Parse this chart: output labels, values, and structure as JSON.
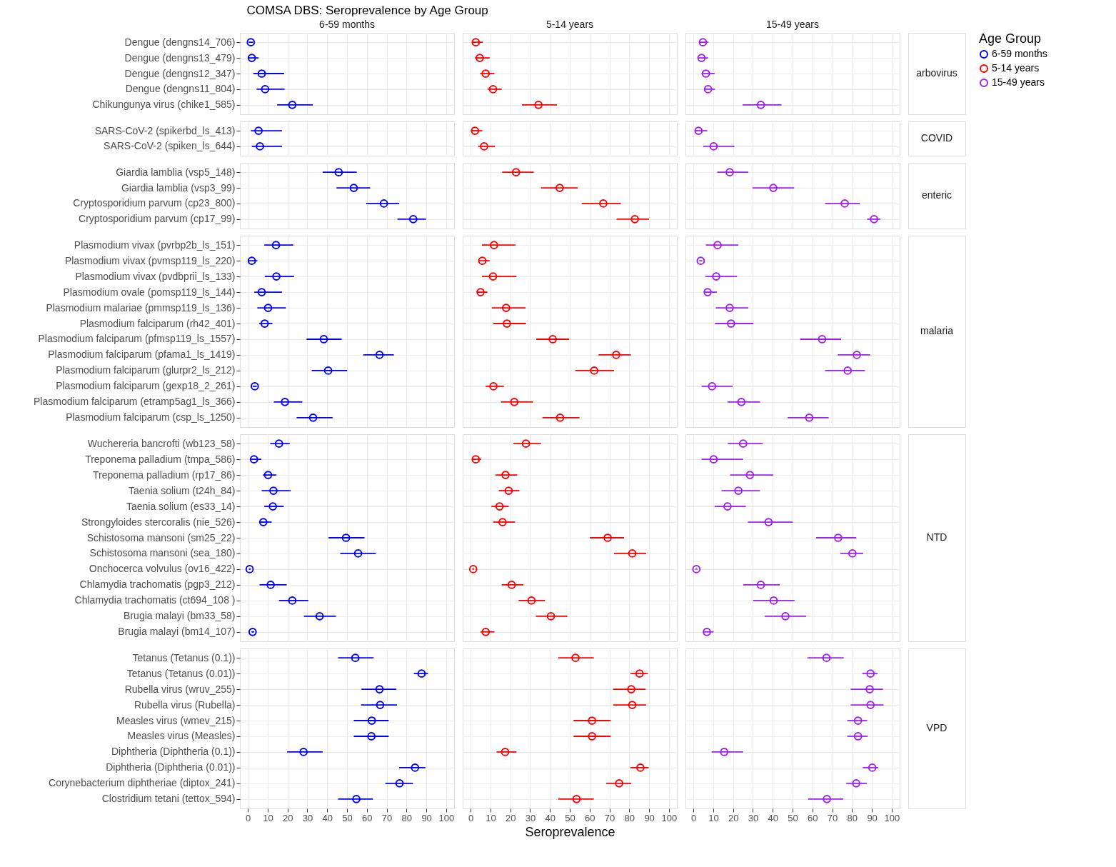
{
  "chart_data": [
    {
      "type": "other",
      "title": "COMSA DBS: Seroprevalence by Age Group"
    },
    {
      "type": "scatter",
      "orientation": "horizontal",
      "title": "6-59 months",
      "categories": [
        "Dengue (dengns14_706)",
        "Dengue (dengns13_479)",
        "Dengue (dengns12_347)",
        "Dengue (dengns11_804)",
        "Chikungunya virus (chike1_585)"
      ],
      "series": [
        {
          "name": "6-59 months",
          "color": "#0000ff",
          "values": [
            1.5,
            2,
            7,
            8.7,
            22.4
          ],
          "errors": [
            [
              0.5,
              2.5
            ],
            [
              0.2,
              5.4
            ],
            [
              2.8,
              18.3
            ],
            [
              4.4,
              18.5
            ],
            [
              14.8,
              32.7
            ]
          ]
        }
      ],
      "xlim": [
        -4,
        104
      ],
      "xticks": [
        0,
        10,
        20,
        30,
        40,
        50,
        60,
        70,
        80,
        90,
        100
      ],
      "grid": true,
      "tick_labels": "y",
      "marker": "circle",
      "legend": "right",
      "legend_title": "Age Group"
    },
    {
      "type": "scatter",
      "orientation": "horizontal",
      "title": "5-14 years",
      "categories": [
        null,
        null,
        null,
        null,
        null
      ],
      "series": [
        {
          "name": "5-14 years",
          "color": "#ff0000",
          "values": [
            2.6,
            4.6,
            7.6,
            11.3,
            34.2
          ],
          "errors": [
            [
              0.9,
              6.1
            ],
            [
              2.2,
              9.6
            ],
            [
              4.8,
              12
            ],
            [
              8.5,
              15.7
            ],
            [
              25.9,
              43.6
            ]
          ]
        }
      ],
      "xlim": [
        -4,
        104
      ],
      "xticks": [
        0,
        10,
        20,
        30,
        40,
        50,
        60,
        70,
        80,
        90,
        100
      ],
      "grid": true,
      "tick_labels": false,
      "marker": "circle"
    },
    {
      "type": "scatter",
      "orientation": "horizontal",
      "title": "15-49 years",
      "y2label": "arbovirus",
      "categories": [
        null,
        null,
        null,
        null,
        null
      ],
      "series": [
        {
          "name": "15-49 years",
          "color": "#a020f0",
          "values": [
            4.8,
            4.1,
            6.3,
            7.4,
            34
          ],
          "errors": [
            [
              3.1,
              7.6
            ],
            [
              2.6,
              7.4
            ],
            [
              4.1,
              10.7
            ],
            [
              5.4,
              10.9
            ],
            [
              24.8,
              44.4
            ]
          ]
        }
      ],
      "xlim": [
        -4,
        104
      ],
      "xticks": [
        0,
        10,
        20,
        30,
        40,
        50,
        60,
        70,
        80,
        90,
        100
      ],
      "grid": true,
      "tick_labels": false,
      "marker": "circle"
    },
    {
      "type": "scatter",
      "orientation": "horizontal",
      "categories": [
        "SARS-CoV-2 (spikerbd_ls_413)",
        "SARS-CoV-2 (spiken_ls_644)"
      ],
      "series": [
        {
          "color": "#0000ff",
          "values": [
            5.4,
            6.1
          ],
          "errors": [
            [
              1.5,
              17.2
            ],
            [
              2,
              17.2
            ]
          ]
        }
      ],
      "xlim": [
        -4,
        104
      ],
      "xticks": [
        0,
        10,
        20,
        30,
        40,
        50,
        60,
        70,
        80,
        90,
        100
      ],
      "grid": true,
      "tick_labels": "y",
      "marker": "circle"
    },
    {
      "type": "scatter",
      "orientation": "horizontal",
      "categories": [
        null,
        null
      ],
      "series": [
        {
          "color": "#ff0000",
          "values": [
            2.2,
            6.8
          ],
          "errors": [
            [
              0.2,
              5.9
            ],
            [
              3.9,
              12.2
            ]
          ]
        }
      ],
      "xlim": [
        -4,
        104
      ],
      "xticks": [
        0,
        10,
        20,
        30,
        40,
        50,
        60,
        70,
        80,
        90,
        100
      ],
      "grid": true,
      "tick_labels": false,
      "marker": "circle"
    },
    {
      "type": "scatter",
      "orientation": "horizontal",
      "y2label": "COVID",
      "categories": [
        null,
        null
      ],
      "series": [
        {
          "color": "#a020f0",
          "values": [
            2.6,
            10.2
          ],
          "errors": [
            [
              0.9,
              7
            ],
            [
              5,
              20.7
            ]
          ]
        }
      ],
      "xlim": [
        -4,
        104
      ],
      "xticks": [
        0,
        10,
        20,
        30,
        40,
        50,
        60,
        70,
        80,
        90,
        100
      ],
      "grid": true,
      "tick_labels": false,
      "marker": "circle"
    },
    {
      "type": "scatter",
      "orientation": "horizontal",
      "categories": [
        "Giardia lamblia (vsp5_148)",
        "Giardia lamblia (vsp3_99)",
        "Cryptosporidium parvum (cp23_800)",
        "Cryptosporidium parvum (cp17_99)"
      ],
      "series": [
        {
          "color": "#0000ff",
          "values": [
            45.8,
            53.4,
            68.6,
            83.4
          ],
          "errors": [
            [
              37.7,
              54.9
            ],
            [
              44.7,
              61.7
            ],
            [
              59.7,
              76.3
            ],
            [
              75.4,
              89.8
            ]
          ]
        }
      ],
      "xlim": [
        -4,
        104
      ],
      "xticks": [
        0,
        10,
        20,
        30,
        40,
        50,
        60,
        70,
        80,
        90,
        100
      ],
      "grid": true,
      "tick_labels": "y",
      "marker": "circle"
    },
    {
      "type": "scatter",
      "orientation": "horizontal",
      "categories": [
        null,
        null,
        null,
        null
      ],
      "series": [
        {
          "color": "#ff0000",
          "values": [
            22.9,
            44.9,
            66.9,
            82.8
          ],
          "errors": [
            [
              15.9,
              31.8
            ],
            [
              35.5,
              54
            ],
            [
              56,
              75.8
            ],
            [
              73.6,
              90
            ]
          ]
        }
      ],
      "xlim": [
        -4,
        104
      ],
      "xticks": [
        0,
        10,
        20,
        30,
        40,
        50,
        60,
        70,
        80,
        90,
        100
      ],
      "grid": true,
      "tick_labels": false,
      "marker": "circle"
    },
    {
      "type": "scatter",
      "orientation": "horizontal",
      "y2label": "enteric",
      "categories": [
        null,
        null,
        null,
        null
      ],
      "series": [
        {
          "color": "#a020f0",
          "values": [
            18.3,
            40.3,
            76.3,
            91.1
          ],
          "errors": [
            [
              12,
              27.7
            ],
            [
              29.8,
              50.8
            ],
            [
              66.4,
              83.9
            ],
            [
              87.6,
              94.3
            ]
          ]
        }
      ],
      "xlim": [
        -4,
        104
      ],
      "xticks": [
        0,
        10,
        20,
        30,
        40,
        50,
        60,
        70,
        80,
        90,
        100
      ],
      "grid": true,
      "tick_labels": false,
      "marker": "circle"
    },
    {
      "type": "scatter",
      "orientation": "horizontal",
      "categories": [
        "Plasmodium vivax (pvrbp2b_ls_151)",
        "Plasmodium vivax (pvmsp119_ls_220)",
        "Plasmodium vivax (pvdbprii_ls_133)",
        "Plasmodium ovale (pomsp119_ls_144)",
        "Plasmodium malariae (pmmsp119_ls_136)",
        "Plasmodium falciparum (rh42_401)",
        "Plasmodium falciparum (pfmsp119_ls_1557)",
        "Plasmodium falciparum (pfama1_ls_1419)",
        "Plasmodium falciparum (glurpr2_ls_212)",
        "Plasmodium falciparum (gexp18_2_261)",
        "Plasmodium falciparum (etramp5ag1_ls_366)",
        "Plasmodium falciparum (csp_ls_1250)"
      ],
      "series": [
        {
          "color": "#0000ff",
          "values": [
            14.2,
            2,
            14.4,
            7,
            10.2,
            8.5,
            38.3,
            66.4,
            40.5,
            3.5,
            18.7,
            32.9
          ],
          "errors": [
            [
              8.3,
              22.9
            ],
            [
              0,
              4.8
            ],
            [
              8.5,
              23.3
            ],
            [
              3.3,
              17.2
            ],
            [
              4.8,
              19.2
            ],
            [
              5.7,
              12.4
            ],
            [
              29.6,
              47.3
            ],
            [
              58.2,
              73.6
            ],
            [
              32.2,
              50.1
            ],
            [
              2.5,
              4.5
            ],
            [
              13.1,
              27.5
            ],
            [
              24.6,
              42.7
            ]
          ]
        }
      ],
      "xlim": [
        -4,
        104
      ],
      "xticks": [
        0,
        10,
        20,
        30,
        40,
        50,
        60,
        70,
        80,
        90,
        100
      ],
      "grid": true,
      "tick_labels": "y",
      "marker": "circle"
    },
    {
      "type": "scatter",
      "orientation": "horizontal",
      "categories": [
        null,
        null,
        null,
        null,
        null,
        null,
        null,
        null,
        null,
        null,
        null,
        null
      ],
      "series": [
        {
          "color": "#ff0000",
          "values": [
            11.8,
            5.9,
            11.3,
            5,
            17.9,
            18.3,
            41.4,
            73.4,
            62.3,
            11.5,
            22,
            45.1
          ],
          "errors": [
            [
              5.7,
              22.6
            ],
            [
              4.1,
              9.6
            ],
            [
              5.7,
              23.1
            ],
            [
              3.3,
              8.5
            ],
            [
              10.7,
              27.7
            ],
            [
              11.5,
              27.9
            ],
            [
              33.1,
              49.7
            ],
            [
              64.5,
              80.8
            ],
            [
              52.9,
              72.3
            ],
            [
              7.6,
              16.8
            ],
            [
              15.3,
              31.4
            ],
            [
              36.2,
              54.9
            ]
          ]
        }
      ],
      "xlim": [
        -4,
        104
      ],
      "xticks": [
        0,
        10,
        20,
        30,
        40,
        50,
        60,
        70,
        80,
        90,
        100
      ],
      "grid": true,
      "tick_labels": false,
      "marker": "circle"
    },
    {
      "type": "scatter",
      "orientation": "horizontal",
      "y2label": "malaria",
      "categories": [
        null,
        null,
        null,
        null,
        null,
        null,
        null,
        null,
        null,
        null,
        null,
        null
      ],
      "series": [
        {
          "color": "#a020f0",
          "values": [
            12.2,
            3.7,
            11.5,
            7.2,
            18.3,
            19,
            64.9,
            82.4,
            77.8,
            9.4,
            24.2,
            58.4
          ],
          "errors": [
            [
              6.3,
              22.7
            ],
            [
              3,
              4.5
            ],
            [
              6.1,
              22
            ],
            [
              5.4,
              11.8
            ],
            [
              11.3,
              27.7
            ],
            [
              10.9,
              30.3
            ],
            [
              53.8,
              74.5
            ],
            [
              72.8,
              89.1
            ],
            [
              66.4,
              86.5
            ],
            [
              4.1,
              19.8
            ],
            [
              17.2,
              33.6
            ],
            [
              47.5,
              68.2
            ]
          ]
        }
      ],
      "xlim": [
        -4,
        104
      ],
      "xticks": [
        0,
        10,
        20,
        30,
        40,
        50,
        60,
        70,
        80,
        90,
        100
      ],
      "grid": true,
      "tick_labels": false,
      "marker": "circle"
    },
    {
      "type": "scatter",
      "orientation": "horizontal",
      "categories": [
        "Wuchereria bancrofti (wb123_58)",
        "Treponema palladium (tmpa_586)",
        "Treponema palladium (rp17_86)",
        "Taenia solium (t24h_84)",
        "Taenia solium (es33_14)",
        "Strongyloides stercoralis (nie_526)",
        "Schistosoma mansoni (sm25_22)",
        "Schistosoma mansoni (sea_180)",
        "Onchocerca volvulus (ov16_422)",
        "Chlamydia trachomatis (pgp3_212)",
        "Chlamydia trachomatis (ct694_108  )",
        "Brugia malayi (bm33_58)",
        "Brugia malayi (bm14_107)"
      ],
      "series": [
        {
          "color": "#0000ff",
          "values": [
            15.7,
            3.1,
            10.2,
            12.9,
            12.6,
            7.8,
            49.5,
            55.6,
            0.9,
            11.5,
            22.4,
            36.2,
            2.4
          ],
          "errors": [
            [
              11.3,
              21.1
            ],
            [
              1.3,
              6.8
            ],
            [
              7.6,
              14.4
            ],
            [
              7,
              21.6
            ],
            [
              8.3,
              18.1
            ],
            [
              5.9,
              12
            ],
            [
              40.7,
              58.8
            ],
            [
              46.6,
              64.5
            ],
            [
              0.5,
              1.5
            ],
            [
              5.9,
              19.6
            ],
            [
              15.7,
              30.5
            ],
            [
              28.3,
              44.4
            ],
            [
              1.8,
              3.2
            ]
          ]
        }
      ],
      "xlim": [
        -4,
        104
      ],
      "xticks": [
        0,
        10,
        20,
        30,
        40,
        50,
        60,
        70,
        80,
        90,
        100
      ],
      "grid": true,
      "tick_labels": "y",
      "marker": "circle"
    },
    {
      "type": "scatter",
      "orientation": "horizontal",
      "categories": [
        null,
        null,
        null,
        null,
        null,
        null,
        null,
        null,
        null,
        null,
        null,
        null,
        null
      ],
      "series": [
        {
          "color": "#ff0000",
          "values": [
            27.9,
            2.6,
            17.6,
            19.2,
            14.6,
            16.1,
            69.1,
            81.5,
            1.3,
            20.7,
            30.7,
            40.5,
            7.6
          ],
          "errors": [
            [
              21.6,
              35.5
            ],
            [
              1.1,
              5.4
            ],
            [
              12.6,
              23.5
            ],
            [
              14.2,
              24.6
            ],
            [
              10.5,
              19.2
            ],
            [
              11.5,
              22.4
            ],
            [
              60.1,
              77.3
            ],
            [
              72.3,
              88.5
            ],
            [
              0.8,
              1.8
            ],
            [
              15.7,
              26.6
            ],
            [
              24.2,
              37.5
            ],
            [
              32.9,
              48.8
            ],
            [
              5,
              12
            ]
          ]
        }
      ],
      "xlim": [
        -4,
        104
      ],
      "xticks": [
        0,
        10,
        20,
        30,
        40,
        50,
        60,
        70,
        80,
        90,
        100
      ],
      "grid": true,
      "tick_labels": false,
      "marker": "circle"
    },
    {
      "type": "scatter",
      "orientation": "horizontal",
      "y2label": "NTD",
      "categories": [
        null,
        null,
        null,
        null,
        null,
        null,
        null,
        null,
        null,
        null,
        null,
        null,
        null
      ],
      "series": [
        {
          "color": "#a020f0",
          "values": [
            25.1,
            10.2,
            28.5,
            22.7,
            17.2,
            37.9,
            73,
            80.2,
            1.5,
            34,
            40.5,
            46.4,
            6.8
          ],
          "errors": [
            [
              17.4,
              34.9
            ],
            [
              4.1,
              25.1
            ],
            [
              18.5,
              40.3
            ],
            [
              14.2,
              33.6
            ],
            [
              10.7,
              26.4
            ],
            [
              27.5,
              50.1
            ],
            [
              61.9,
              82.1
            ],
            [
              74.1,
              85.6
            ],
            [
              1,
              2
            ],
            [
              25.1,
              43.6
            ],
            [
              30.1,
              51
            ],
            [
              35.9,
              56.9
            ],
            [
              5,
              10.2
            ]
          ]
        }
      ],
      "xlim": [
        -4,
        104
      ],
      "xticks": [
        0,
        10,
        20,
        30,
        40,
        50,
        60,
        70,
        80,
        90,
        100
      ],
      "grid": true,
      "tick_labels": false,
      "marker": "circle"
    },
    {
      "type": "scatter",
      "orientation": "horizontal",
      "categories": [
        "Tetanus (Tetanus (0.1))",
        "Tetanus (Tetanus (0.01))",
        "Rubella virus (wruv_255)",
        "Rubella virus (Rubella)",
        "Measles virus (wmev_215)",
        "Measles virus (Measles)",
        "Diphtheria (Diphtheria (0.1))",
        "Diphtheria (Diphtheria (0.01))",
        "Corynebacterium diphtheriae (diptox_241)",
        "Clostridium tetani (tettox_594)"
      ],
      "series": [
        {
          "color": "#0000ff",
          "values": [
            54.2,
            87.6,
            66.4,
            66.7,
            62.5,
            62.3,
            28.1,
            84.3,
            76.5,
            54.7
          ],
          "errors": [
            [
              45.5,
              63.4
            ],
            [
              83.7,
              90.8
            ],
            [
              57.3,
              74.9
            ],
            [
              57.1,
              75.2
            ],
            [
              53.4,
              71
            ],
            [
              53.4,
              71
            ],
            [
              19.8,
              37.7
            ],
            [
              76.3,
              89.5
            ],
            [
              69.3,
              83.2
            ],
            [
              45.5,
              63
            ]
          ]
        }
      ],
      "xlim": [
        -4,
        104
      ],
      "xticks": [
        0,
        10,
        20,
        30,
        40,
        50,
        60,
        70,
        80,
        90,
        100
      ],
      "grid": true,
      "marker": "circle"
    },
    {
      "type": "scatter",
      "orientation": "horizontal",
      "xlabel": "Seroprevalence",
      "categories": [
        null,
        null,
        null,
        null,
        null,
        null,
        null,
        null,
        null,
        null
      ],
      "series": [
        {
          "color": "#ff0000",
          "values": [
            52.9,
            85.2,
            81,
            81.5,
            61.2,
            61.2,
            17.4,
            85.6,
            74.9,
            53.4
          ],
          "errors": [
            [
              44.2,
              62.1
            ],
            [
              80.6,
              89.3
            ],
            [
              71.9,
              88.2
            ],
            [
              71.9,
              88.5
            ],
            [
              51.9,
              70.6
            ],
            [
              51.9,
              70.6
            ],
            [
              13.1,
              23.1
            ],
            [
              80.6,
              89.8
            ],
            [
              68.4,
              81
            ],
            [
              44.2,
              62.1
            ]
          ]
        }
      ],
      "xlim": [
        -4,
        104
      ],
      "xticks": [
        0,
        10,
        20,
        30,
        40,
        50,
        60,
        70,
        80,
        90,
        100
      ],
      "grid": true,
      "tick_labels": "x",
      "marker": "circle"
    },
    {
      "type": "scatter",
      "orientation": "horizontal",
      "y2label": "VPD",
      "categories": [
        null,
        null,
        null,
        null,
        null,
        null,
        null,
        null,
        null,
        null
      ],
      "series": [
        {
          "color": "#a020f0",
          "values": [
            67.1,
            89.3,
            88.9,
            89.3,
            83,
            83,
            15.5,
            90.2,
            82.1,
            67.3
          ],
          "errors": [
            [
              57.5,
              75.8
            ],
            [
              85.2,
              92.8
            ],
            [
              79.3,
              95.6
            ],
            [
              79.3,
              95.9
            ],
            [
              77.6,
              87.6
            ],
            [
              77.6,
              87.8
            ],
            [
              9.2,
              25.1
            ],
            [
              85.4,
              93.2
            ],
            [
              77.1,
              87.4
            ],
            [
              57.9,
              75.6
            ]
          ]
        }
      ],
      "xlim": [
        -4,
        104
      ],
      "xticks": [
        0,
        10,
        20,
        30,
        40,
        50,
        60,
        70,
        80,
        90,
        100
      ],
      "grid": true,
      "tick_labels": "x",
      "marker": "circle"
    }
  ]
}
